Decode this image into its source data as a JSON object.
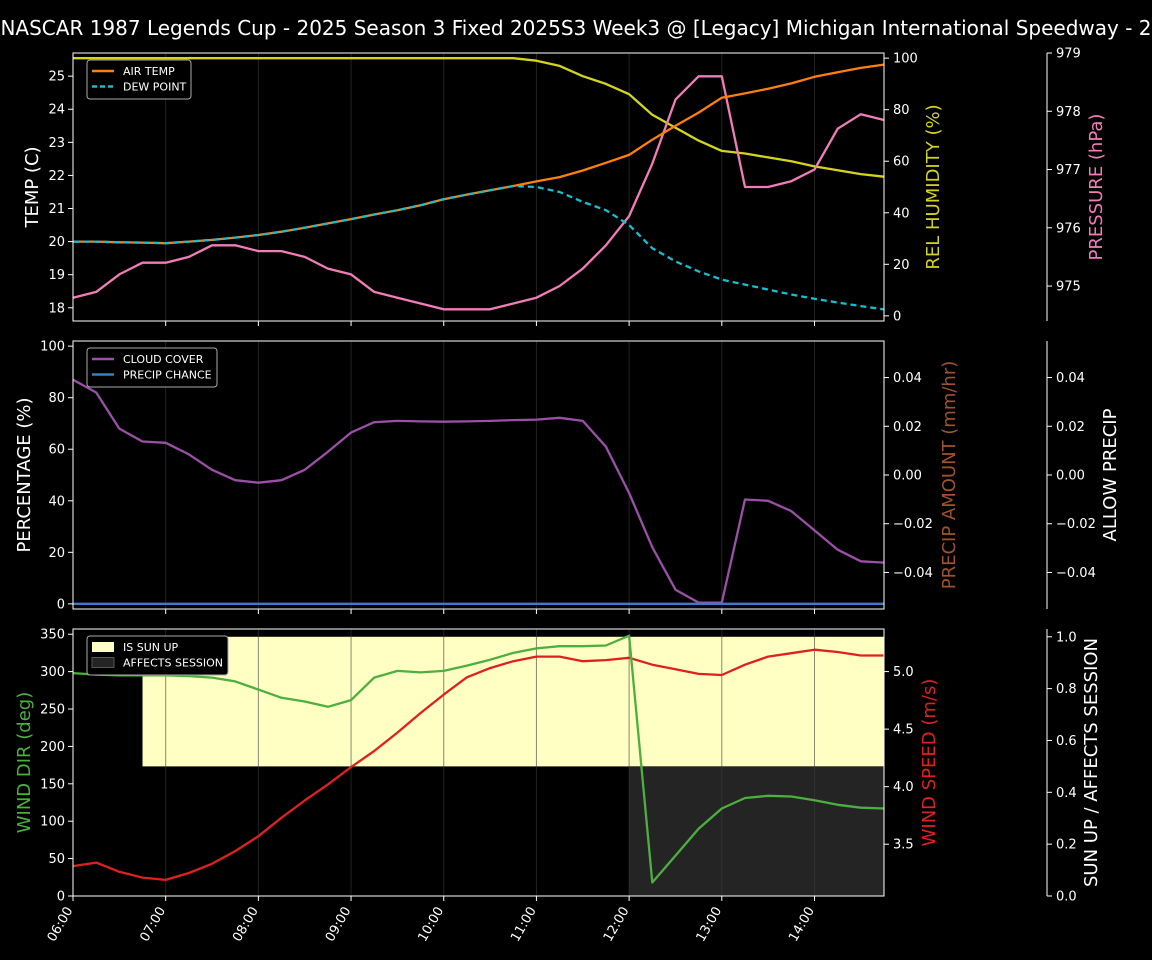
{
  "title": "NASCAR 1987 Legends Cup  - 2025 Season 3 Fixed 2025S3 Week3 @ [Legacy] Michigan International Speedway - 2",
  "x_ticks": [
    "06:00",
    "07:00",
    "08:00",
    "09:00",
    "10:00",
    "11:00",
    "12:00",
    "13:00",
    "14:00"
  ],
  "colors": {
    "air_temp": "#ff7f0e",
    "dew_point": "#17becf",
    "humidity": "#d4d41e",
    "pressure": "#f07cb8",
    "cloud": "#9b4fa8",
    "precip_chance": "#3a7dc0",
    "precip_amount_label": "#a0522d",
    "wind_dir": "#4caf3e",
    "wind_speed": "#e02020",
    "sun_up": "#ffffc4",
    "affects_session": "#242424"
  },
  "chart_data": [
    {
      "type": "line",
      "x_unit": "hours",
      "x": [
        6,
        6.25,
        6.5,
        6.75,
        7,
        7.25,
        7.5,
        7.75,
        8,
        8.25,
        8.5,
        8.75,
        9,
        9.25,
        9.5,
        9.75,
        10,
        10.25,
        10.5,
        10.75,
        11,
        11.25,
        11.5,
        11.75,
        12,
        12.25,
        12.5,
        12.75,
        13,
        13.25,
        13.5,
        13.75,
        14,
        14.25,
        14.5,
        14.75
      ],
      "xlim": [
        6,
        14.75
      ],
      "ylabel": "TEMP (C)",
      "ylim": [
        17.6,
        25.7
      ],
      "yticks": [
        18,
        19,
        20,
        21,
        22,
        23,
        24,
        25
      ],
      "y2label": "REL HUMIDITY (%)",
      "y2lim": [
        -2,
        102
      ],
      "y2ticks": [
        0,
        20,
        40,
        60,
        80,
        100
      ],
      "y3label": "PRESSURE (hPa)",
      "y3lim": [
        974.4,
        979
      ],
      "y3ticks": [
        975,
        976,
        977,
        978,
        979
      ],
      "legend": "top-left",
      "series": [
        {
          "name": "AIR TEMP",
          "axis": "left",
          "values": [
            20,
            20,
            19.98,
            19.97,
            19.95,
            20,
            20.05,
            20.12,
            20.2,
            20.3,
            20.42,
            20.55,
            20.68,
            20.82,
            20.95,
            21.1,
            21.28,
            21.42,
            21.55,
            21.68,
            21.82,
            21.95,
            22.15,
            22.38,
            22.62,
            23.08,
            23.5,
            23.9,
            24.35,
            24.48,
            24.62,
            24.78,
            24.98,
            25.12,
            25.25,
            25.35
          ]
        },
        {
          "name": "DEW POINT",
          "axis": "left",
          "dashed": true,
          "values": [
            20,
            20,
            19.98,
            19.97,
            19.95,
            20,
            20.05,
            20.12,
            20.2,
            20.3,
            20.42,
            20.55,
            20.68,
            20.82,
            20.95,
            21.1,
            21.28,
            21.42,
            21.55,
            21.68,
            21.65,
            21.5,
            21.2,
            20.95,
            20.5,
            19.8,
            19.4,
            19.1,
            18.85,
            18.7,
            18.55,
            18.4,
            18.27,
            18.16,
            18.05,
            17.95
          ]
        },
        {
          "name": "REL HUMIDITY",
          "axis": "right",
          "values": [
            100,
            100,
            100,
            100,
            100,
            100,
            100,
            100,
            100,
            100,
            100,
            100,
            100,
            100,
            100,
            100,
            100,
            100,
            100,
            100,
            99,
            97,
            93,
            90,
            86,
            78,
            73,
            68,
            64,
            63,
            61.5,
            60,
            58,
            56.5,
            55,
            54
          ]
        },
        {
          "name": "PRESSURE",
          "axis": "right2",
          "values": [
            974.8,
            974.9,
            975.2,
            975.4,
            975.4,
            975.5,
            975.7,
            975.7,
            975.6,
            975.6,
            975.5,
            975.3,
            975.2,
            974.9,
            974.8,
            974.7,
            974.6,
            974.6,
            974.6,
            974.7,
            974.8,
            975.0,
            975.3,
            975.7,
            976.2,
            977.1,
            978.2,
            978.6,
            978.6,
            976.7,
            976.7,
            976.8,
            977.0,
            977.7,
            977.95,
            977.85
          ]
        }
      ]
    },
    {
      "type": "line",
      "x": [
        6,
        6.25,
        6.5,
        6.75,
        7,
        7.25,
        7.5,
        7.75,
        8,
        8.25,
        8.5,
        8.75,
        9,
        9.25,
        9.5,
        9.75,
        10,
        10.25,
        10.5,
        10.75,
        11,
        11.25,
        11.5,
        11.75,
        12,
        12.25,
        12.5,
        12.75,
        13,
        13.25,
        13.5,
        13.75,
        14,
        14.25,
        14.5,
        14.75
      ],
      "xlim": [
        6,
        14.75
      ],
      "ylabel": "PERCENTAGE (%)",
      "ylim": [
        -2,
        102
      ],
      "yticks": [
        0,
        20,
        40,
        60,
        80,
        100
      ],
      "y2label": "PRECIP AMOUNT (mm/hr)",
      "y2lim": [
        -0.055,
        0.055
      ],
      "y2ticks": [
        0.04,
        0.02,
        0.0,
        -0.02,
        -0.04
      ],
      "y2ticklabels": [
        "0.04",
        "0.02",
        "0.00",
        "−0.02",
        "−0.04"
      ],
      "y3label": "ALLOW PRECIP",
      "y3ticks": [
        0.04,
        0.02,
        0.0,
        -0.02,
        -0.04
      ],
      "legend": "top-left",
      "series": [
        {
          "name": "CLOUD COVER",
          "values": [
            87,
            82,
            68,
            63,
            62.5,
            58,
            52,
            48,
            47,
            48,
            52,
            59,
            66.5,
            70.5,
            71,
            70.8,
            70.7,
            70.8,
            71,
            71.3,
            71.5,
            72.2,
            71,
            61,
            43,
            22,
            5.5,
            0.5,
            0.5,
            40.5,
            40,
            36,
            28.5,
            21,
            16.5,
            16
          ]
        },
        {
          "name": "PRECIP CHANCE",
          "values": [
            0,
            0,
            0,
            0,
            0,
            0,
            0,
            0,
            0,
            0,
            0,
            0,
            0,
            0,
            0,
            0,
            0,
            0,
            0,
            0,
            0,
            0,
            0,
            0,
            0,
            0,
            0,
            0,
            0,
            0,
            0,
            0,
            0,
            0,
            0,
            0
          ]
        }
      ]
    },
    {
      "type": "line",
      "x": [
        6,
        6.25,
        6.5,
        6.75,
        7,
        7.25,
        7.5,
        7.75,
        8,
        8.25,
        8.5,
        8.75,
        9,
        9.25,
        9.5,
        9.75,
        10,
        10.25,
        10.5,
        10.75,
        11,
        11.25,
        11.5,
        11.75,
        12,
        12.25,
        12.5,
        12.75,
        13,
        13.25,
        13.5,
        13.75,
        14,
        14.25,
        14.5,
        14.75
      ],
      "xlim": [
        6,
        14.75
      ],
      "ylabel": "WIND DIR (deg)",
      "ylim": [
        0,
        357
      ],
      "yticks": [
        0,
        50,
        100,
        150,
        200,
        250,
        300,
        350
      ],
      "y2label": "WIND SPEED (m/s)",
      "y2lim": [
        3.05,
        5.37
      ],
      "y2ticks": [
        3.5,
        4.0,
        4.5,
        5.0
      ],
      "y3label": "SUN UP / AFFECTS SESSION",
      "y3lim": [
        0,
        1.03
      ],
      "y3ticks": [
        0,
        0.2,
        0.4,
        0.6,
        0.8,
        1.0
      ],
      "legend": "top-left",
      "series": [
        {
          "name": "WIND DIR",
          "axis": "left",
          "values": [
            298,
            296,
            295,
            295,
            295,
            294,
            292,
            287,
            276,
            265,
            260,
            253,
            262,
            292,
            301,
            299,
            301,
            308,
            316,
            325,
            331,
            334,
            334,
            335,
            348,
            18,
            54,
            90,
            117,
            131,
            134,
            133,
            128,
            122,
            118,
            117
          ]
        },
        {
          "name": "WIND SPEED",
          "axis": "right",
          "values": [
            3.31,
            3.34,
            3.26,
            3.21,
            3.19,
            3.25,
            3.33,
            3.44,
            3.57,
            3.73,
            3.88,
            4.02,
            4.17,
            4.31,
            4.47,
            4.64,
            4.8,
            4.95,
            5.03,
            5.09,
            5.13,
            5.13,
            5.09,
            5.1,
            5.12,
            5.06,
            5.02,
            4.98,
            4.97,
            5.06,
            5.13,
            5.16,
            5.19,
            5.17,
            5.14,
            5.14
          ]
        }
      ],
      "bands": [
        {
          "name": "IS SUN UP",
          "from": 6.75,
          "to": 14.75,
          "value": 1.0
        },
        {
          "name": "AFFECTS SESSION",
          "from": 12.0,
          "to": 14.75,
          "value": 1.0
        }
      ]
    }
  ]
}
